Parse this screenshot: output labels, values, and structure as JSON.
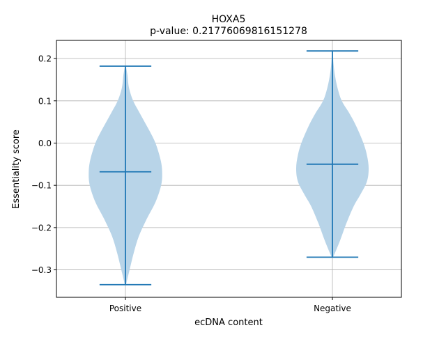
{
  "chart_data": {
    "type": "violin",
    "title": "HOXA5",
    "subtitle": "p-value: 0.21776069816151278",
    "xlabel": "ecDNA content",
    "ylabel": "Essentiality score",
    "ylim": [
      -0.365,
      0.243
    ],
    "yticks": [
      0.2,
      0.1,
      0.0,
      -0.1,
      -0.2,
      -0.3
    ],
    "ytick_labels": [
      "0.2",
      "0.1",
      "0.0",
      "−0.1",
      "−0.2",
      "−0.3"
    ],
    "grid": true,
    "categories": [
      "Positive",
      "Negative"
    ],
    "series": [
      {
        "category": "Positive",
        "min": -0.335,
        "median": -0.068,
        "max": 0.182,
        "density_profile": [
          [
            0.182,
            0.01
          ],
          [
            0.16,
            0.04
          ],
          [
            0.13,
            0.07
          ],
          [
            0.1,
            0.15
          ],
          [
            0.07,
            0.28
          ],
          [
            0.03,
            0.46
          ],
          [
            0.0,
            0.58
          ],
          [
            -0.04,
            0.68
          ],
          [
            -0.07,
            0.71
          ],
          [
            -0.1,
            0.69
          ],
          [
            -0.14,
            0.58
          ],
          [
            -0.18,
            0.41
          ],
          [
            -0.22,
            0.26
          ],
          [
            -0.26,
            0.16
          ],
          [
            -0.3,
            0.08
          ],
          [
            -0.32,
            0.04
          ],
          [
            -0.335,
            0.01
          ]
        ]
      },
      {
        "category": "Negative",
        "min": -0.27,
        "median": -0.05,
        "max": 0.218,
        "density_profile": [
          [
            0.218,
            0.01
          ],
          [
            0.19,
            0.02
          ],
          [
            0.16,
            0.05
          ],
          [
            0.13,
            0.1
          ],
          [
            0.1,
            0.18
          ],
          [
            0.07,
            0.33
          ],
          [
            0.04,
            0.46
          ],
          [
            0.0,
            0.6
          ],
          [
            -0.03,
            0.67
          ],
          [
            -0.06,
            0.7
          ],
          [
            -0.09,
            0.67
          ],
          [
            -0.12,
            0.55
          ],
          [
            -0.15,
            0.41
          ],
          [
            -0.19,
            0.27
          ],
          [
            -0.23,
            0.15
          ],
          [
            -0.26,
            0.05
          ],
          [
            -0.27,
            0.01
          ]
        ]
      }
    ],
    "colors": {
      "body": "#b8d4e8",
      "line": "#1f77b4",
      "grid": "#b0b0b0"
    }
  }
}
